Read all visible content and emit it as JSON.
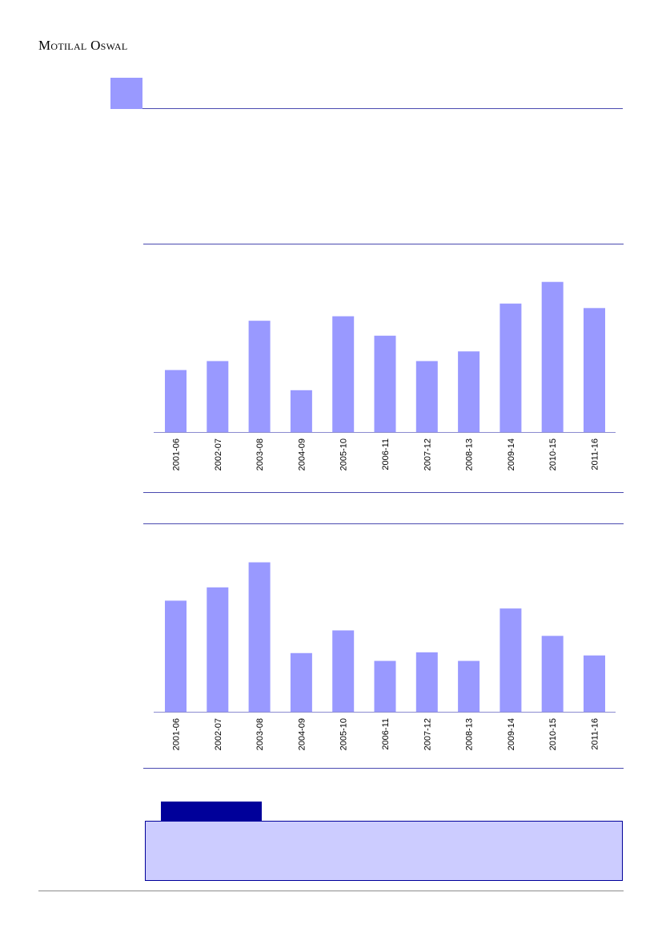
{
  "header": {
    "brand": "Motilal Oswal"
  },
  "colors": {
    "accent_light": "#9999ff",
    "accent_dark": "#00009a",
    "note_fill": "#ccccff",
    "rule_blue": "#4a4ab0"
  },
  "chart_data": [
    {
      "type": "bar",
      "categories": [
        "2001-06",
        "2002-07",
        "2003-08",
        "2004-09",
        "2005-10",
        "2006-11",
        "2007-12",
        "2008-13",
        "2009-14",
        "2010-15",
        "2011-16"
      ],
      "values": [
        41.5,
        47.5,
        74.5,
        28,
        77.5,
        64.5,
        47.5,
        54,
        86,
        100.5,
        83
      ],
      "ylim": [
        0,
        110
      ],
      "grid": false,
      "title": "",
      "xlabel": "",
      "ylabel": ""
    },
    {
      "type": "bar",
      "categories": [
        "2001-06",
        "2002-07",
        "2003-08",
        "2004-09",
        "2005-10",
        "2006-11",
        "2007-12",
        "2008-13",
        "2009-14",
        "2010-15",
        "2011-16"
      ],
      "values": [
        71,
        79.5,
        95.5,
        37.5,
        52,
        32.5,
        38,
        32.5,
        66,
        48.5,
        36
      ],
      "ylim": [
        0,
        105
      ],
      "grid": false,
      "title": "",
      "xlabel": "",
      "ylabel": ""
    }
  ]
}
